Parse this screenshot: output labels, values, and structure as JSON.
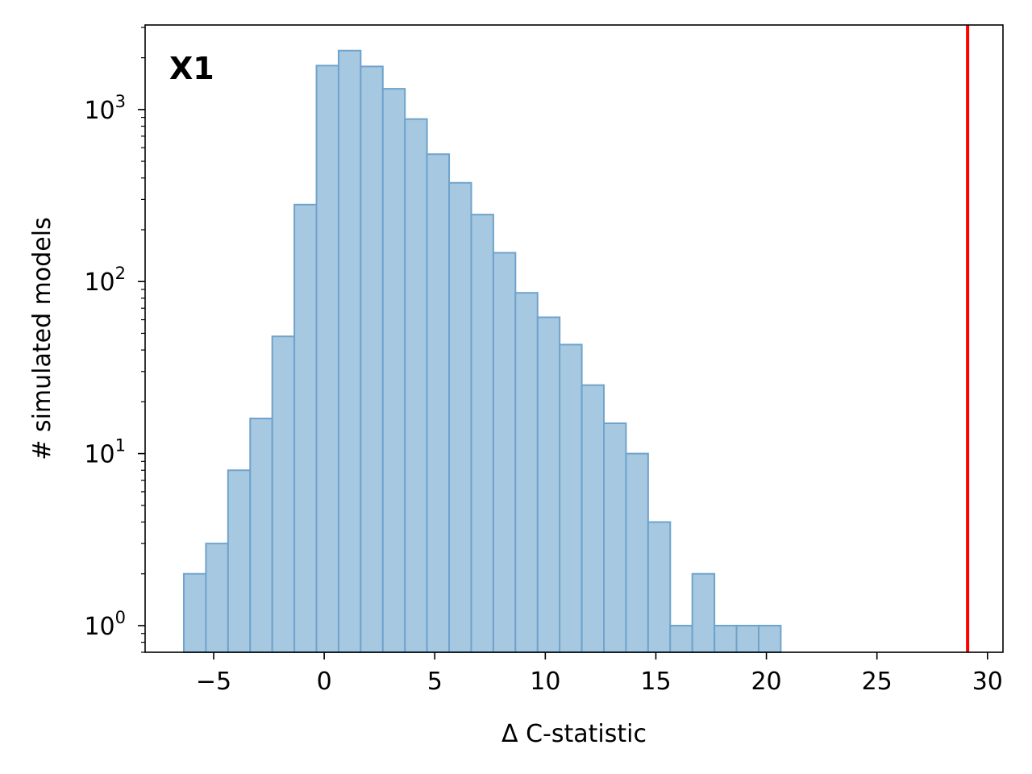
{
  "chart_data": {
    "type": "bar",
    "panel_label": "X1",
    "xlabel": "Δ C-statistic",
    "ylabel": "# simulated models",
    "xlim": [
      -8.1,
      30.7
    ],
    "ylim": [
      0.7,
      3100
    ],
    "yscale": "log",
    "grid": false,
    "legend": "none",
    "x_ticks": [
      -5,
      0,
      5,
      10,
      15,
      20,
      25,
      30
    ],
    "x_tick_labels": [
      "−5",
      "0",
      "5",
      "10",
      "15",
      "20",
      "25",
      "30"
    ],
    "y_ticks": [
      {
        "value": 1,
        "base": "10",
        "exp": "0"
      },
      {
        "value": 10,
        "base": "10",
        "exp": "1"
      },
      {
        "value": 100,
        "base": "10",
        "exp": "2"
      },
      {
        "value": 1000,
        "base": "10",
        "exp": "3"
      }
    ],
    "bins": {
      "edges": [
        -6.35,
        -5.35,
        -4.35,
        -3.35,
        -2.35,
        -1.35,
        -0.35,
        0.65,
        1.65,
        2.65,
        3.65,
        4.65,
        5.65,
        6.65,
        7.65,
        8.65,
        9.65,
        10.65,
        11.65,
        12.65,
        13.65,
        14.65,
        15.65,
        16.65,
        17.65,
        18.65,
        19.65,
        20.65
      ],
      "counts": [
        2,
        3,
        8,
        16,
        48,
        280,
        1800,
        2200,
        1780,
        1320,
        880,
        550,
        375,
        245,
        147,
        86,
        62,
        43,
        25,
        15,
        10,
        4,
        1,
        2,
        1,
        1,
        1
      ]
    },
    "observed_line": {
      "x": 29.1,
      "color": "#ff0000"
    },
    "bar_color": "#a6c8e1",
    "bar_edge_color": "#6fa3cc"
  }
}
